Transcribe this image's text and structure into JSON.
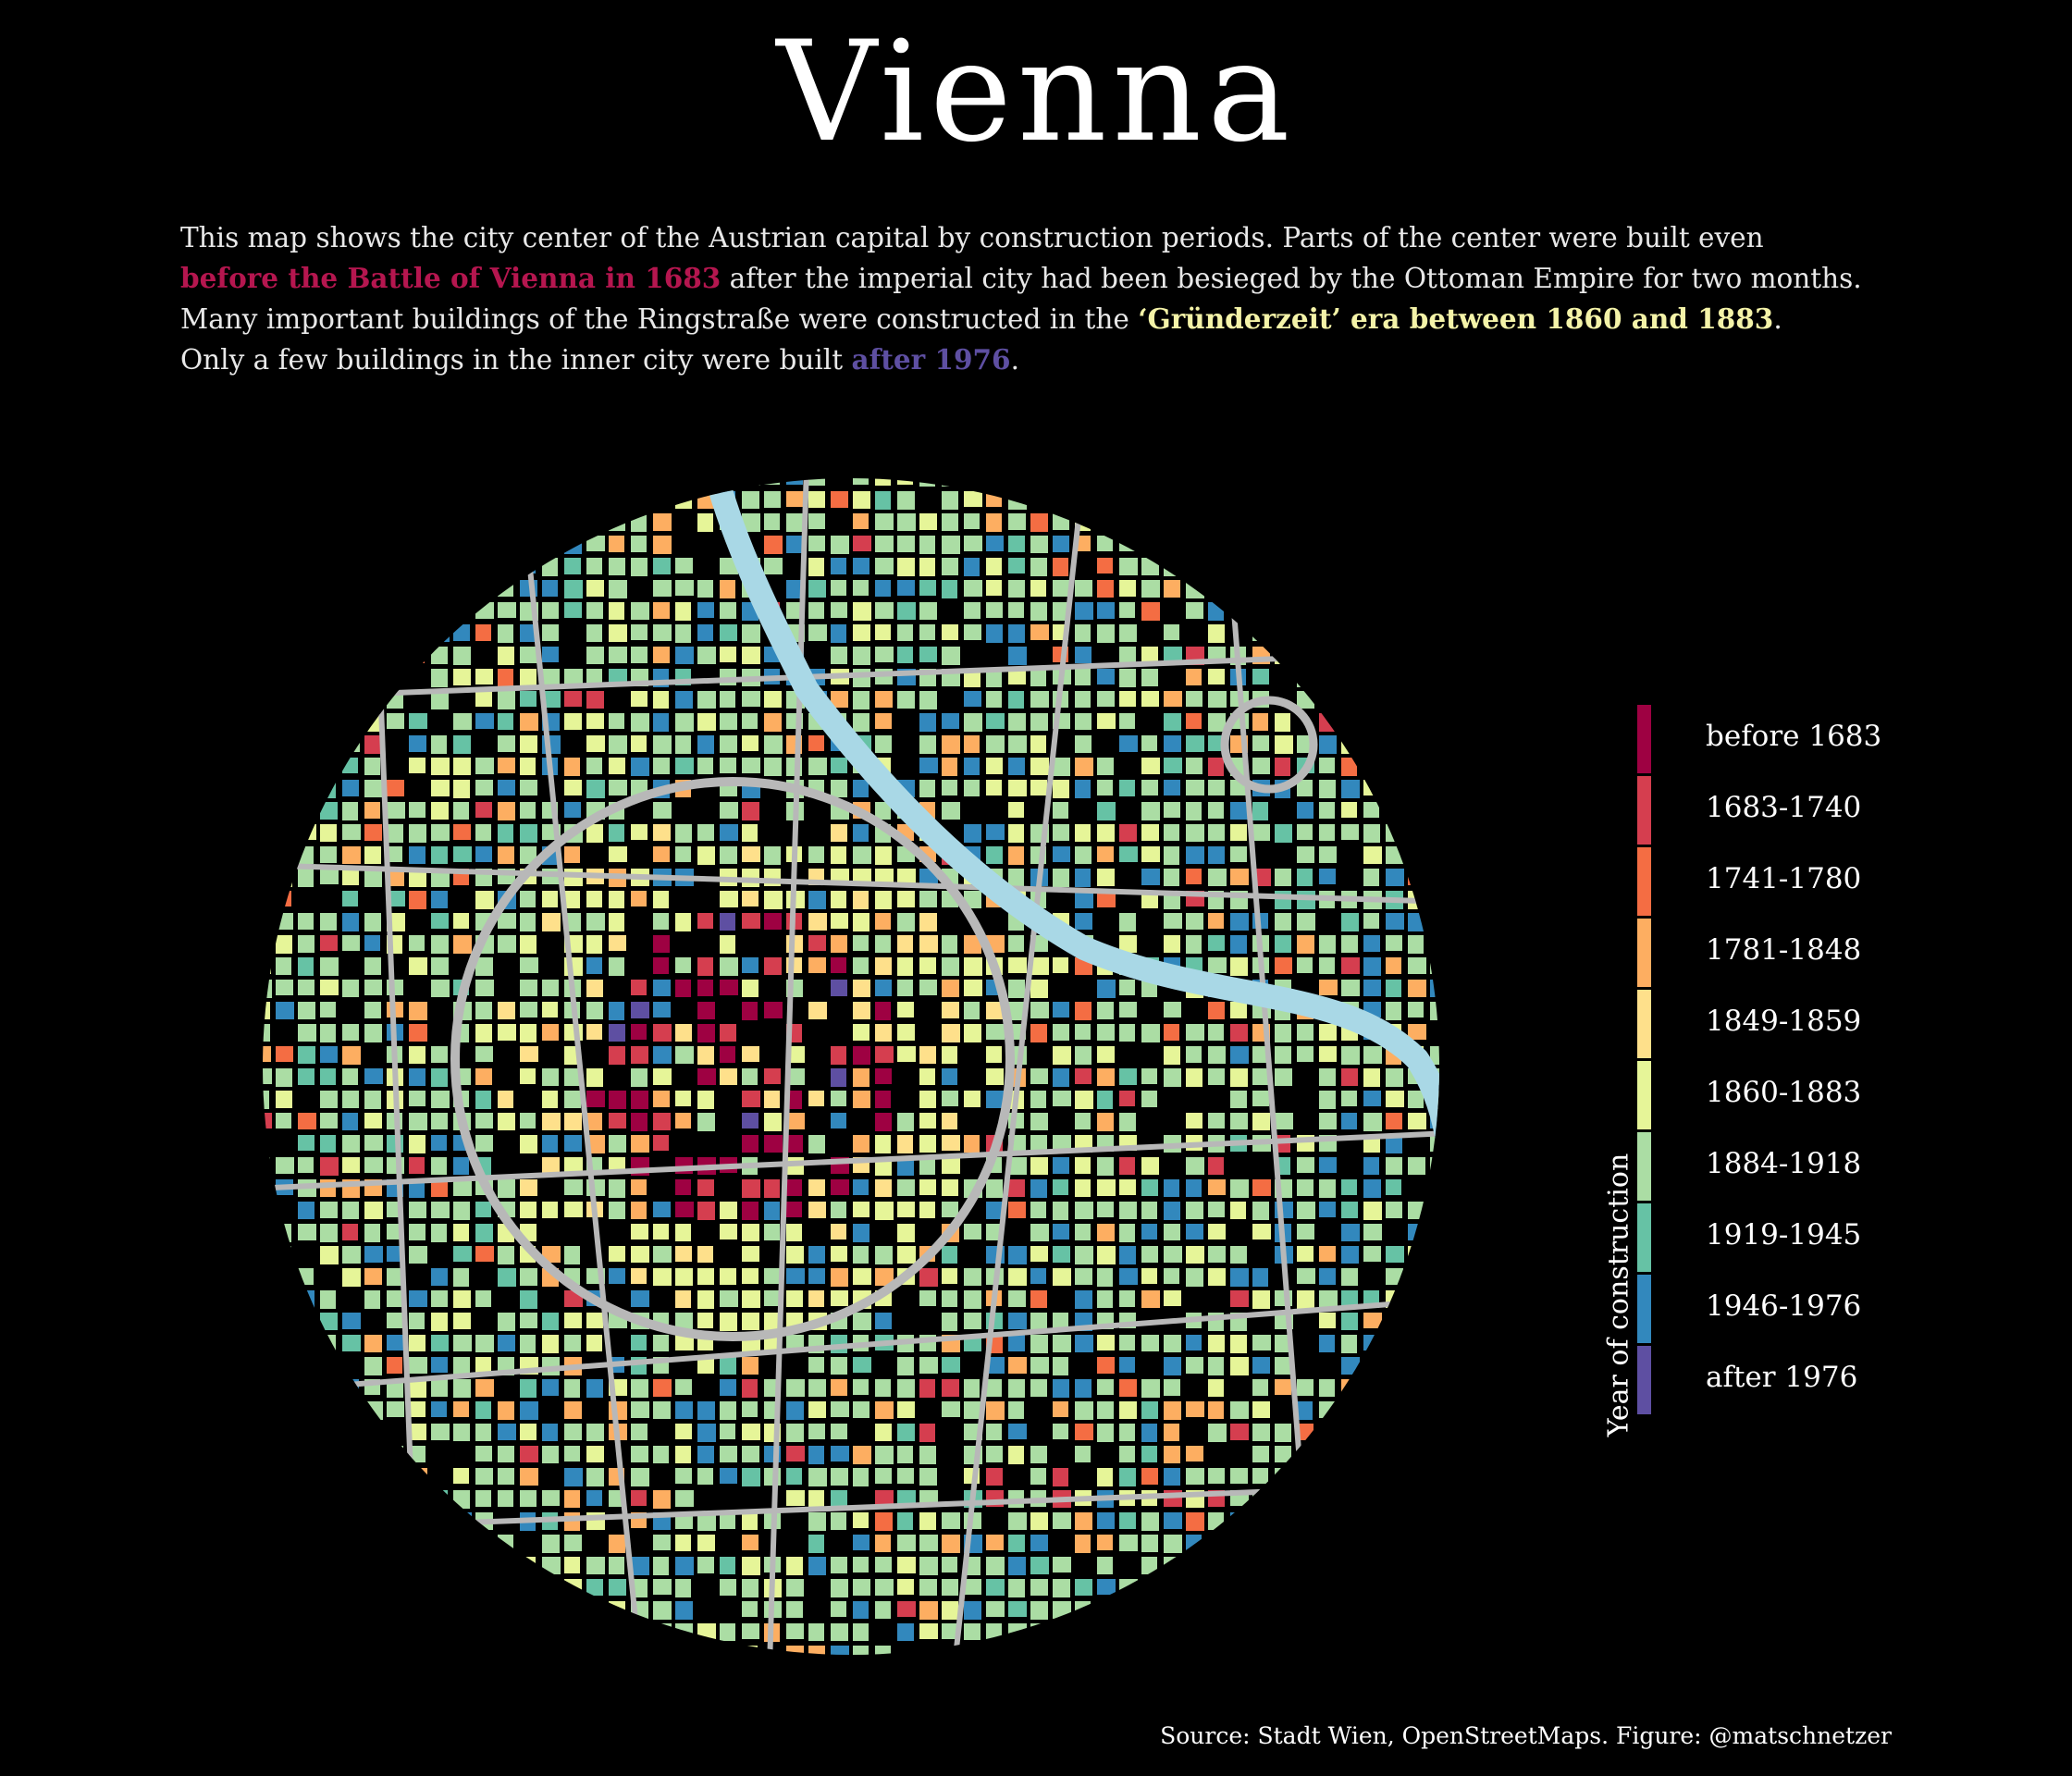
{
  "title": "Vienna",
  "intro": {
    "line1": "This map shows the city center of the Austrian capital by construction periods. Parts of the center were built even",
    "line2_highlight": "before the Battle of Vienna in 1683",
    "line2_rest": " after the imperial city had been besieged by the Ottoman Empire for two months.",
    "line3_start": "Many important buildings of the Ringstraße were constructed in the ",
    "line3_highlight": "‘Gründerzeit’ era between 1860 and 1883",
    "line3_end": ".",
    "line4_start": "Only a few buildings in the inner city were built ",
    "line4_highlight": "after 1976",
    "line4_end": "."
  },
  "colors": {
    "background": "#000000",
    "river": "#a9d8e6",
    "roads": "#b8b8b8",
    "highlight_red": "#b5164f",
    "highlight_yellow": "#f4f3a8",
    "highlight_purple": "#5e4fa2"
  },
  "legend": {
    "title": "Year of construction",
    "items": [
      {
        "label": "before 1683",
        "color": "#9e0142"
      },
      {
        "label": "1683-1740",
        "color": "#d53e4f"
      },
      {
        "label": "1741-1780",
        "color": "#f46d43"
      },
      {
        "label": "1781-1848",
        "color": "#fdae61"
      },
      {
        "label": "1849-1859",
        "color": "#fee08b"
      },
      {
        "label": "1860-1883",
        "color": "#e6f598"
      },
      {
        "label": "1884-1918",
        "color": "#abdda4"
      },
      {
        "label": "1919-1945",
        "color": "#66c2a5"
      },
      {
        "label": "1946-1976",
        "color": "#3288bd"
      },
      {
        "label": "after 1976",
        "color": "#5e4fa2"
      }
    ]
  },
  "source": "Source: Stadt Wien, OpenStreetMaps. Figure: @matschnetzer"
}
